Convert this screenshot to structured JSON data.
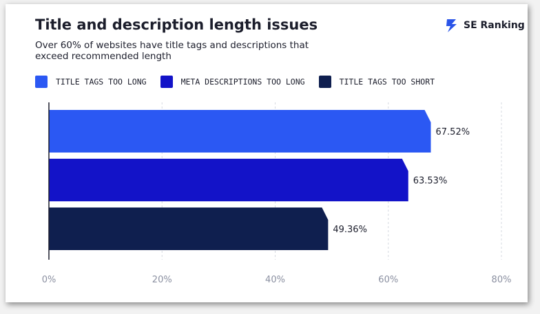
{
  "header": {
    "title": "Title and description length issues",
    "subtitle": "Over 60% of websites have title tags and descriptions that exceed recommended length"
  },
  "brand": {
    "name": "SE Ranking",
    "logo_icon": "lightning-icon",
    "color": "#2a54e8"
  },
  "chart_data": {
    "type": "bar",
    "orientation": "horizontal",
    "title": "Title and description length issues",
    "subtitle": "Over 60% of websites have title tags and descriptions that exceed recommended length",
    "categories": [
      "TITLE TAGS TOO LONG",
      "META DESCRIPTIONS TOO LONG",
      "TITLE TAGS TOO SHORT"
    ],
    "values": [
      67.52,
      63.53,
      49.36
    ],
    "value_labels": [
      "67.52%",
      "63.53%",
      "49.36%"
    ],
    "colors": [
      "#2b58f3",
      "#1313c8",
      "#0f1f4f"
    ],
    "xlim": [
      0,
      80
    ],
    "xticks": [
      0,
      20,
      40,
      60,
      80
    ],
    "xtick_labels": [
      "0%",
      "20%",
      "40%",
      "60%",
      "80%"
    ],
    "grid": true,
    "legend_position": "top-left"
  }
}
